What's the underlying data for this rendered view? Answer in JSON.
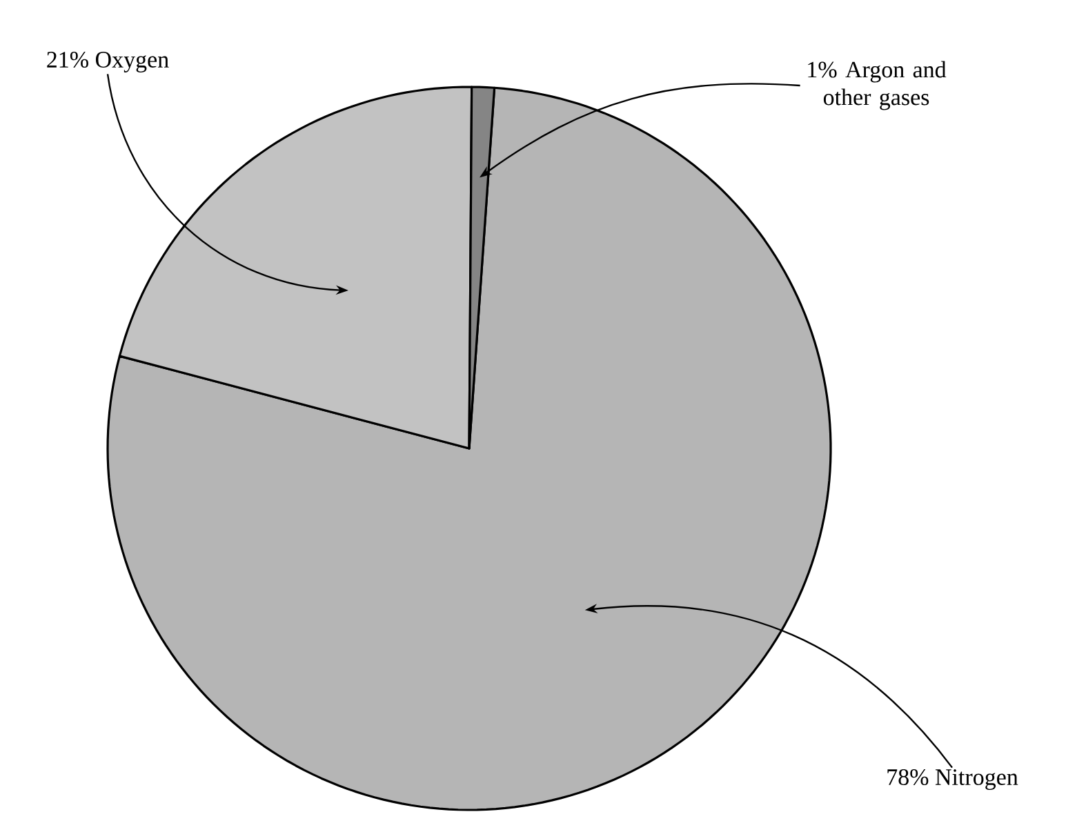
{
  "chart_data": {
    "type": "pie",
    "categories": [
      "78% Nitrogen",
      "21% Oxygen",
      "1% Argon and other gases"
    ],
    "values": [
      78,
      21,
      1
    ],
    "colors": [
      "#b5b5b5",
      "#c2c2c2",
      "#858585"
    ]
  }
}
